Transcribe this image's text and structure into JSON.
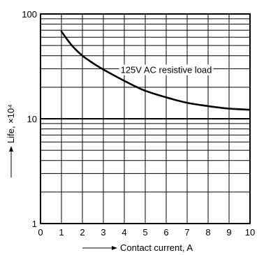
{
  "chart_data": {
    "type": "line",
    "title": "",
    "xlabel": "Contact current, A",
    "ylabel": "Life, ×10⁴",
    "xlim": [
      0,
      10
    ],
    "ylim": [
      1,
      100
    ],
    "y_scale": "log",
    "grid": true,
    "x_tick_labels": [
      "0",
      "1",
      "2",
      "3",
      "4",
      "5",
      "6",
      "7",
      "8",
      "9",
      "10"
    ],
    "y_tick_labels": [
      {
        "value": 1,
        "label": "1"
      },
      {
        "value": 10,
        "label": "10"
      },
      {
        "value": 100,
        "label": "100"
      }
    ],
    "series": [
      {
        "name": "125V AC resistive load",
        "x": [
          1,
          1.5,
          2,
          2.5,
          3,
          3.5,
          4,
          4.5,
          5,
          6,
          7,
          8,
          9,
          10
        ],
        "y": [
          68,
          50,
          40,
          34,
          29.5,
          26,
          23,
          20.5,
          18.5,
          16,
          14.2,
          13.2,
          12.5,
          12.2
        ]
      }
    ],
    "annotations": [
      {
        "text": "125V AC resistive load",
        "x": 6,
        "y": 29.5
      }
    ]
  }
}
